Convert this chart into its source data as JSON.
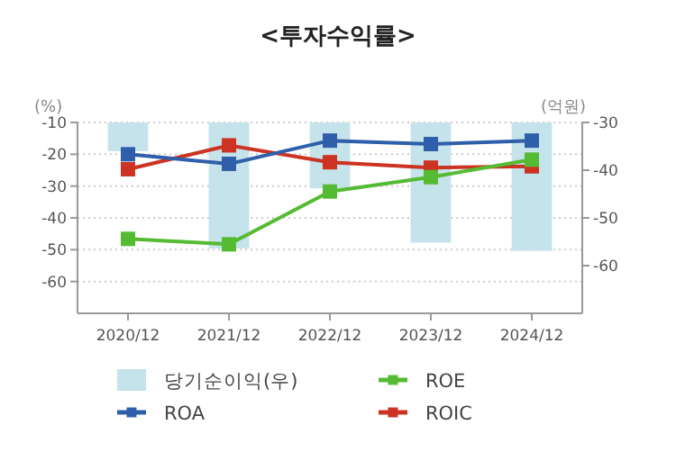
{
  "chart_data": {
    "type": "line",
    "title": "<투자수익률>",
    "ylabel": "(%)",
    "y2label": "(억원)",
    "categories": [
      "2020/12",
      "2021/12",
      "2022/12",
      "2023/12",
      "2024/12"
    ],
    "series": [
      {
        "name": "당기순이익(우)",
        "type": "bar",
        "axis": "y2",
        "color": "#c5e3ea",
        "values": [
          -36,
          -56.4,
          -43.8,
          -55.2,
          -56.9
        ]
      },
      {
        "name": "ROA",
        "color": "#2f5faa",
        "values": [
          -20,
          -23,
          -15.7,
          -16.8,
          -15.7
        ]
      },
      {
        "name": "ROE",
        "color": "#55bb33",
        "values": [
          -46.6,
          -48.3,
          -31.7,
          -27.2,
          -21.7
        ]
      },
      {
        "name": "ROIC",
        "color": "#cc3322",
        "values": [
          -24.7,
          -17.2,
          -22.5,
          -24.2,
          -23.8
        ]
      }
    ],
    "ylim": [
      -70,
      -10
    ],
    "yticks": [
      -10,
      -20,
      -30,
      -40,
      -50,
      -60
    ],
    "y2lim": [
      -70,
      -30
    ],
    "y2ticks": [
      -30,
      -40,
      -50,
      -60
    ],
    "grid": "y",
    "legend": "bottom",
    "marker": "square",
    "line_style": "solid"
  }
}
